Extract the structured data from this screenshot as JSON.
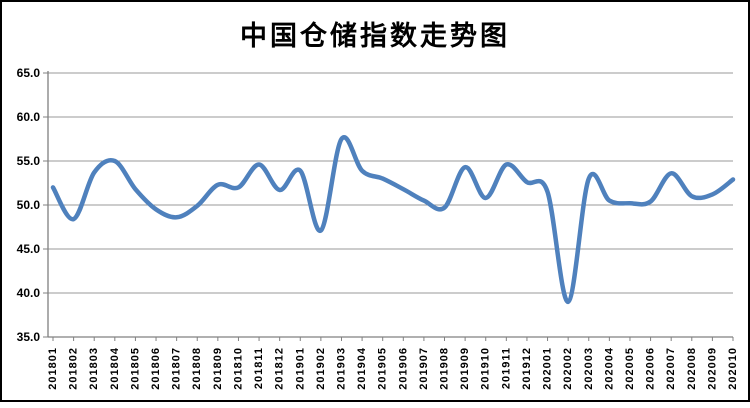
{
  "chart_data": {
    "type": "line",
    "title": "中国仓储指数走势图",
    "categories": [
      "201801",
      "201802",
      "201803",
      "201804",
      "201805",
      "201806",
      "201807",
      "201808",
      "201809",
      "201810",
      "201811",
      "201812",
      "201901",
      "201902",
      "201903",
      "201904",
      "201905",
      "201906",
      "201907",
      "201908",
      "201909",
      "201910",
      "201911",
      "201912",
      "202001",
      "202002",
      "202003",
      "202004",
      "202005",
      "202006",
      "202007",
      "202008",
      "202009",
      "202010"
    ],
    "values": [
      52.0,
      48.4,
      53.7,
      55.0,
      51.8,
      49.5,
      48.6,
      49.9,
      52.3,
      52.0,
      54.6,
      51.7,
      53.9,
      47.1,
      57.5,
      53.9,
      53.0,
      51.8,
      50.5,
      49.7,
      54.3,
      50.8,
      54.6,
      52.6,
      51.5,
      39.0,
      53.0,
      50.5,
      50.2,
      50.4,
      53.6,
      51.0,
      51.2,
      52.9
    ],
    "xlabel": "",
    "ylabel": "",
    "ylim": [
      35.0,
      65.0
    ],
    "ytick_step": 5.0,
    "ytick_labels": [
      "65.0",
      "60.0",
      "55.0",
      "50.0",
      "45.0",
      "40.0",
      "35.0"
    ],
    "grid": "horizontal",
    "legend_position": "none",
    "line_color": "#4F81BD",
    "gridline_color": "#9A9A9A",
    "axis_color": "#808080",
    "label_color": "#000000",
    "smooth": true
  }
}
